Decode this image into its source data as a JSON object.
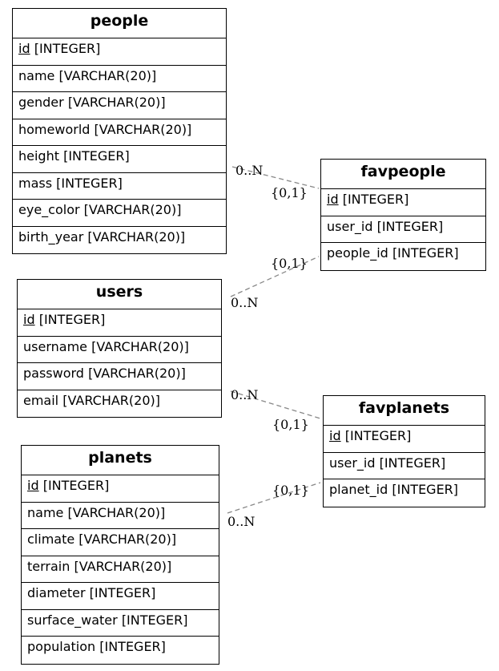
{
  "colors": {
    "edge": "#888888",
    "border": "#000000"
  },
  "tables": {
    "people": {
      "title": "people",
      "columns": [
        {
          "name": "id",
          "type": "[INTEGER]",
          "pk": true
        },
        {
          "name": "name",
          "type": "[VARCHAR(20)]"
        },
        {
          "name": "gender",
          "type": "[VARCHAR(20)]"
        },
        {
          "name": "homeworld",
          "type": "[VARCHAR(20)]"
        },
        {
          "name": "height",
          "type": "[INTEGER]"
        },
        {
          "name": "mass",
          "type": "[INTEGER]"
        },
        {
          "name": "eye_color",
          "type": "[VARCHAR(20)]"
        },
        {
          "name": "birth_year",
          "type": "[VARCHAR(20)]"
        }
      ]
    },
    "users": {
      "title": "users",
      "columns": [
        {
          "name": "id",
          "type": "[INTEGER]",
          "pk": true
        },
        {
          "name": "username",
          "type": "[VARCHAR(20)]"
        },
        {
          "name": "password",
          "type": "[VARCHAR(20)]"
        },
        {
          "name": "email",
          "type": "[VARCHAR(20)]"
        }
      ]
    },
    "planets": {
      "title": "planets",
      "columns": [
        {
          "name": "id",
          "type": "[INTEGER]",
          "pk": true
        },
        {
          "name": "name",
          "type": "[VARCHAR(20)]"
        },
        {
          "name": "climate",
          "type": "[VARCHAR(20)]"
        },
        {
          "name": "terrain",
          "type": "[VARCHAR(20)]"
        },
        {
          "name": "diameter",
          "type": "[INTEGER]"
        },
        {
          "name": "surface_water",
          "type": "[INTEGER]"
        },
        {
          "name": "population",
          "type": "[INTEGER]"
        }
      ]
    },
    "favpeople": {
      "title": "favpeople",
      "columns": [
        {
          "name": "id",
          "type": "[INTEGER]",
          "pk": true
        },
        {
          "name": "user_id",
          "type": "[INTEGER]"
        },
        {
          "name": "people_id",
          "type": "[INTEGER]"
        }
      ]
    },
    "favplanets": {
      "title": "favplanets",
      "columns": [
        {
          "name": "id",
          "type": "[INTEGER]",
          "pk": true
        },
        {
          "name": "user_id",
          "type": "[INTEGER]"
        },
        {
          "name": "planet_id",
          "type": "[INTEGER]"
        }
      ]
    }
  },
  "relations": [
    {
      "from": "people",
      "to": "favpeople",
      "from_card": "0..N",
      "to_card": "{0,1}"
    },
    {
      "from": "users",
      "to": "favpeople",
      "from_card": "0..N",
      "to_card": "{0,1}"
    },
    {
      "from": "users",
      "to": "favplanets",
      "from_card": "0..N",
      "to_card": "{0,1}"
    },
    {
      "from": "planets",
      "to": "favplanets",
      "from_card": "0..N",
      "to_card": "{0,1}"
    }
  ]
}
